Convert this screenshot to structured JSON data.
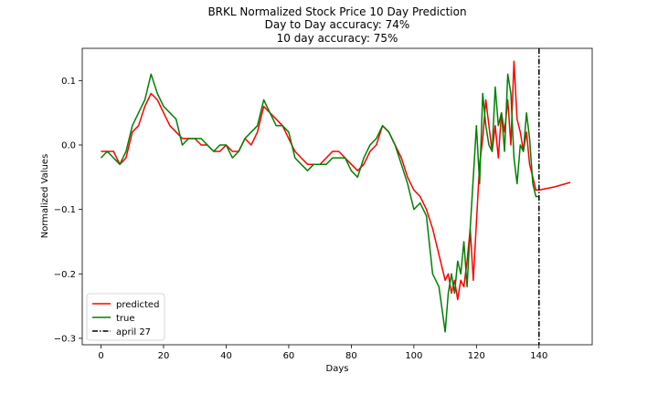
{
  "chart_data": {
    "type": "line",
    "title": "BRKL Normalized Stock Price 10 Day Prediction",
    "subtitle_lines": [
      "Day to Day accuracy: 74%",
      "10 day accuracy: 75%"
    ],
    "xlabel": "Days",
    "ylabel": "Normalized Values",
    "xlim": [
      -6,
      157
    ],
    "ylim": [
      -0.31,
      0.15
    ],
    "xticks": [
      0,
      20,
      40,
      60,
      80,
      100,
      120,
      140
    ],
    "yticks": [
      -0.3,
      -0.2,
      -0.1,
      0.0,
      0.1
    ],
    "ytick_labels": [
      "−0.3",
      "−0.2",
      "−0.1",
      "0.0",
      "0.1"
    ],
    "legend_position": "lower-left",
    "grid": false,
    "series": [
      {
        "name": "predicted",
        "color": "#ff0000",
        "x": [
          0,
          2,
          4,
          6,
          8,
          10,
          12,
          14,
          16,
          18,
          20,
          22,
          24,
          26,
          28,
          30,
          32,
          34,
          36,
          38,
          40,
          42,
          44,
          46,
          48,
          50,
          52,
          54,
          56,
          58,
          60,
          62,
          64,
          66,
          68,
          70,
          72,
          74,
          76,
          78,
          80,
          82,
          84,
          86,
          88,
          90,
          92,
          94,
          96,
          98,
          100,
          102,
          104,
          106,
          108,
          110,
          111,
          112,
          113,
          114,
          115,
          116,
          117,
          118,
          119,
          120,
          121,
          122,
          123,
          124,
          125,
          126,
          127,
          128,
          129,
          130,
          131,
          132,
          133,
          134,
          135,
          136,
          137,
          138,
          139,
          140,
          145,
          150
        ],
        "y": [
          -0.01,
          -0.01,
          -0.01,
          -0.03,
          -0.02,
          0.02,
          0.03,
          0.06,
          0.08,
          0.07,
          0.05,
          0.03,
          0.02,
          0.01,
          0.01,
          0.01,
          0.0,
          0.0,
          -0.01,
          -0.01,
          0.0,
          -0.01,
          -0.01,
          0.01,
          0.0,
          0.02,
          0.06,
          0.05,
          0.04,
          0.03,
          0.01,
          -0.01,
          -0.02,
          -0.03,
          -0.03,
          -0.03,
          -0.02,
          -0.01,
          -0.01,
          -0.02,
          -0.03,
          -0.04,
          -0.03,
          -0.01,
          0.0,
          0.03,
          0.02,
          0.0,
          -0.02,
          -0.05,
          -0.07,
          -0.08,
          -0.1,
          -0.13,
          -0.17,
          -0.21,
          -0.2,
          -0.23,
          -0.21,
          -0.24,
          -0.21,
          -0.22,
          -0.18,
          -0.13,
          -0.21,
          -0.12,
          -0.03,
          0.01,
          0.07,
          0.03,
          -0.01,
          0.03,
          -0.02,
          0.05,
          0.02,
          0.07,
          0.0,
          0.13,
          0.04,
          0.02,
          -0.01,
          0.02,
          -0.03,
          -0.05,
          -0.07,
          -0.07,
          -0.065,
          -0.058
        ]
      },
      {
        "name": "true",
        "color": "#008000",
        "x": [
          0,
          2,
          4,
          6,
          8,
          10,
          12,
          14,
          16,
          18,
          20,
          22,
          24,
          26,
          28,
          30,
          32,
          34,
          36,
          38,
          40,
          42,
          44,
          46,
          48,
          50,
          52,
          54,
          56,
          58,
          60,
          62,
          64,
          66,
          68,
          70,
          72,
          74,
          76,
          78,
          80,
          82,
          84,
          86,
          88,
          90,
          92,
          94,
          96,
          98,
          100,
          102,
          104,
          106,
          108,
          110,
          111,
          112,
          113,
          114,
          115,
          116,
          117,
          118,
          119,
          120,
          121,
          122,
          123,
          124,
          125,
          126,
          127,
          128,
          129,
          130,
          131,
          132,
          133,
          134,
          135,
          136,
          137,
          138,
          139,
          140
        ],
        "y": [
          -0.02,
          -0.01,
          -0.02,
          -0.03,
          -0.01,
          0.03,
          0.05,
          0.07,
          0.11,
          0.08,
          0.06,
          0.05,
          0.04,
          0.0,
          0.01,
          0.01,
          0.01,
          0.0,
          -0.01,
          0.0,
          0.0,
          -0.02,
          -0.01,
          0.01,
          0.02,
          0.03,
          0.07,
          0.05,
          0.03,
          0.03,
          0.02,
          -0.02,
          -0.03,
          -0.04,
          -0.03,
          -0.03,
          -0.03,
          -0.02,
          -0.02,
          -0.02,
          -0.04,
          -0.05,
          -0.02,
          0.0,
          0.01,
          0.03,
          0.02,
          0.0,
          -0.03,
          -0.06,
          -0.1,
          -0.09,
          -0.11,
          -0.2,
          -0.22,
          -0.29,
          -0.23,
          -0.2,
          -0.23,
          -0.18,
          -0.2,
          -0.15,
          -0.22,
          -0.13,
          -0.05,
          0.03,
          -0.06,
          0.08,
          0.03,
          0.0,
          -0.01,
          0.09,
          0.03,
          0.05,
          -0.01,
          0.11,
          0.08,
          -0.02,
          -0.06,
          0.0,
          -0.01,
          0.05,
          0.01,
          -0.06,
          -0.08,
          -0.08
        ]
      }
    ],
    "vline": {
      "name": "april 27",
      "x": 140,
      "color": "#000000",
      "style": "dash-dot"
    }
  }
}
